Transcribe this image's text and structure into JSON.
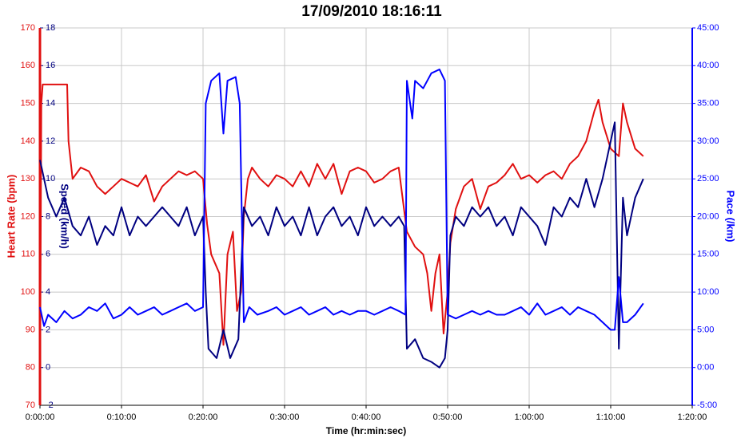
{
  "chart_data": {
    "type": "line",
    "title": "17/09/2010 18:16:11",
    "xlabel": "Time (hr:min:sec)",
    "ylabel": "Heart Rate (bpm)",
    "y2label": "Pace (/km)",
    "y3label": "Speed (km/h)",
    "xlim": [
      0,
      4800
    ],
    "xticks": [
      {
        "value": 0,
        "label": "0:00:00"
      },
      {
        "value": 600,
        "label": "0:10:00"
      },
      {
        "value": 1200,
        "label": "0:20:00"
      },
      {
        "value": 1800,
        "label": "0:30:00"
      },
      {
        "value": 2400,
        "label": "0:40:00"
      },
      {
        "value": 3000,
        "label": "0:50:00"
      },
      {
        "value": 3600,
        "label": "1:00:00"
      },
      {
        "value": 4200,
        "label": "1:10:00"
      },
      {
        "value": 4800,
        "label": "1:20:00"
      }
    ],
    "ylim": [
      70,
      170
    ],
    "yticks": [
      70,
      80,
      90,
      100,
      110,
      120,
      130,
      140,
      150,
      160,
      170
    ],
    "y2lim": [
      -5,
      45
    ],
    "y2ticks": [
      {
        "value": -5,
        "label": "-5:00"
      },
      {
        "value": 0,
        "label": "0:00"
      },
      {
        "value": 5,
        "label": "5:00"
      },
      {
        "value": 10,
        "label": "10:00"
      },
      {
        "value": 15,
        "label": "15:00"
      },
      {
        "value": 20,
        "label": "20:00"
      },
      {
        "value": 25,
        "label": "25:00"
      },
      {
        "value": 30,
        "label": "30:00"
      },
      {
        "value": 35,
        "label": "35:00"
      },
      {
        "value": 40,
        "label": "40:00"
      },
      {
        "value": 45,
        "label": "45:00"
      }
    ],
    "y3lim": [
      -2,
      18
    ],
    "y3ticks": [
      -2,
      0,
      2,
      4,
      6,
      8,
      10,
      12,
      14,
      16,
      18
    ],
    "grid": true,
    "series": [
      {
        "name": "Heart Rate",
        "color": "#e01010",
        "axis": "y",
        "x": [
          0,
          10,
          20,
          60,
          200,
          210,
          240,
          300,
          360,
          420,
          480,
          540,
          600,
          660,
          720,
          780,
          840,
          900,
          960,
          1020,
          1080,
          1140,
          1200,
          1230,
          1260,
          1320,
          1350,
          1380,
          1420,
          1450,
          1480,
          1500,
          1530,
          1560,
          1620,
          1680,
          1740,
          1800,
          1860,
          1920,
          1980,
          2040,
          2100,
          2160,
          2220,
          2280,
          2340,
          2400,
          2460,
          2520,
          2580,
          2640,
          2700,
          2760,
          2820,
          2850,
          2880,
          2910,
          2940,
          2970,
          3000,
          3020,
          3060,
          3120,
          3180,
          3240,
          3300,
          3360,
          3420,
          3480,
          3540,
          3600,
          3660,
          3720,
          3780,
          3840,
          3900,
          3960,
          4020,
          4080,
          4110,
          4140,
          4200,
          4260,
          4290,
          4320,
          4380,
          4440
        ],
        "values": [
          70,
          150,
          155,
          155,
          155,
          140,
          130,
          133,
          132,
          128,
          126,
          128,
          130,
          129,
          128,
          131,
          124,
          128,
          130,
          132,
          131,
          132,
          130,
          118,
          110,
          105,
          86,
          110,
          116,
          95,
          100,
          120,
          130,
          133,
          130,
          128,
          131,
          130,
          128,
          132,
          128,
          134,
          130,
          134,
          126,
          132,
          133,
          132,
          129,
          130,
          132,
          133,
          116,
          112,
          110,
          105,
          95,
          105,
          110,
          89,
          100,
          113,
          122,
          128,
          130,
          122,
          128,
          129,
          131,
          134,
          130,
          131,
          129,
          131,
          132,
          130,
          134,
          136,
          140,
          148,
          151,
          145,
          138,
          136,
          150,
          145,
          138,
          136
        ]
      },
      {
        "name": "Speed",
        "color": "#000080",
        "axis": "y3",
        "x": [
          0,
          30,
          60,
          120,
          180,
          240,
          300,
          360,
          420,
          480,
          540,
          600,
          660,
          720,
          780,
          840,
          900,
          960,
          1020,
          1080,
          1140,
          1200,
          1220,
          1240,
          1300,
          1350,
          1400,
          1460,
          1500,
          1560,
          1620,
          1680,
          1740,
          1800,
          1860,
          1920,
          1980,
          2040,
          2100,
          2160,
          2220,
          2280,
          2340,
          2400,
          2460,
          2520,
          2580,
          2640,
          2680,
          2700,
          2760,
          2820,
          2880,
          2940,
          2980,
          3000,
          3020,
          3060,
          3120,
          3180,
          3240,
          3300,
          3360,
          3420,
          3480,
          3540,
          3600,
          3660,
          3720,
          3780,
          3840,
          3900,
          3960,
          4020,
          4080,
          4140,
          4200,
          4230,
          4260,
          4290,
          4320,
          4380,
          4440
        ],
        "values": [
          11,
          10,
          9,
          8,
          9,
          7.5,
          7,
          8,
          6.5,
          7.5,
          7,
          8.5,
          7,
          8,
          7.5,
          8,
          8.5,
          8,
          7.5,
          8.5,
          7,
          8,
          4,
          1,
          0.5,
          2,
          0.5,
          1.5,
          8.5,
          7.5,
          8,
          7,
          8.5,
          7.5,
          8,
          7,
          8.5,
          7,
          8,
          8.5,
          7.5,
          8,
          7,
          8.5,
          7.5,
          8,
          7.5,
          8,
          7.5,
          1,
          1.5,
          0.5,
          0.3,
          0,
          0.5,
          2,
          7,
          8,
          7.5,
          8.5,
          8,
          8.5,
          7.5,
          8,
          7,
          8.5,
          8,
          7.5,
          6.5,
          8.5,
          8,
          9,
          8.5,
          10,
          8.5,
          10,
          12,
          13,
          1,
          9,
          7,
          9,
          10
        ]
      },
      {
        "name": "Pace",
        "color": "#0000ff",
        "axis": "y2",
        "x": [
          0,
          30,
          60,
          120,
          180,
          240,
          300,
          360,
          420,
          480,
          540,
          600,
          660,
          720,
          780,
          840,
          900,
          960,
          1020,
          1080,
          1140,
          1200,
          1220,
          1260,
          1320,
          1350,
          1380,
          1440,
          1470,
          1500,
          1540,
          1600,
          1680,
          1740,
          1800,
          1860,
          1920,
          1980,
          2040,
          2100,
          2160,
          2220,
          2280,
          2340,
          2400,
          2460,
          2520,
          2580,
          2640,
          2690,
          2700,
          2740,
          2760,
          2820,
          2880,
          2940,
          2980,
          3000,
          3060,
          3120,
          3180,
          3240,
          3300,
          3360,
          3420,
          3480,
          3540,
          3600,
          3660,
          3720,
          3780,
          3840,
          3900,
          3960,
          4020,
          4080,
          4140,
          4200,
          4230,
          4260,
          4290,
          4320,
          4380,
          4440
        ],
        "values": [
          8,
          5.5,
          7,
          6,
          7.5,
          6.5,
          7,
          8,
          7.5,
          8.5,
          6.5,
          7,
          8,
          7,
          7.5,
          8,
          7,
          7.5,
          8,
          8.5,
          7.5,
          8,
          35,
          38,
          39,
          31,
          38,
          38.5,
          35,
          6,
          8,
          7,
          7.5,
          8,
          7,
          7.5,
          8,
          7,
          7.5,
          8,
          7,
          7.5,
          7,
          7.5,
          7.5,
          7,
          7.5,
          8,
          7.5,
          7,
          38,
          33,
          38,
          37,
          39,
          39.5,
          38,
          7,
          6.5,
          7,
          7.5,
          7,
          7.5,
          7,
          7,
          7.5,
          8,
          7,
          8.5,
          7,
          7.5,
          8,
          7,
          8,
          7.5,
          7,
          6,
          5,
          5,
          12,
          6,
          6,
          7,
          8.5
        ]
      }
    ]
  }
}
